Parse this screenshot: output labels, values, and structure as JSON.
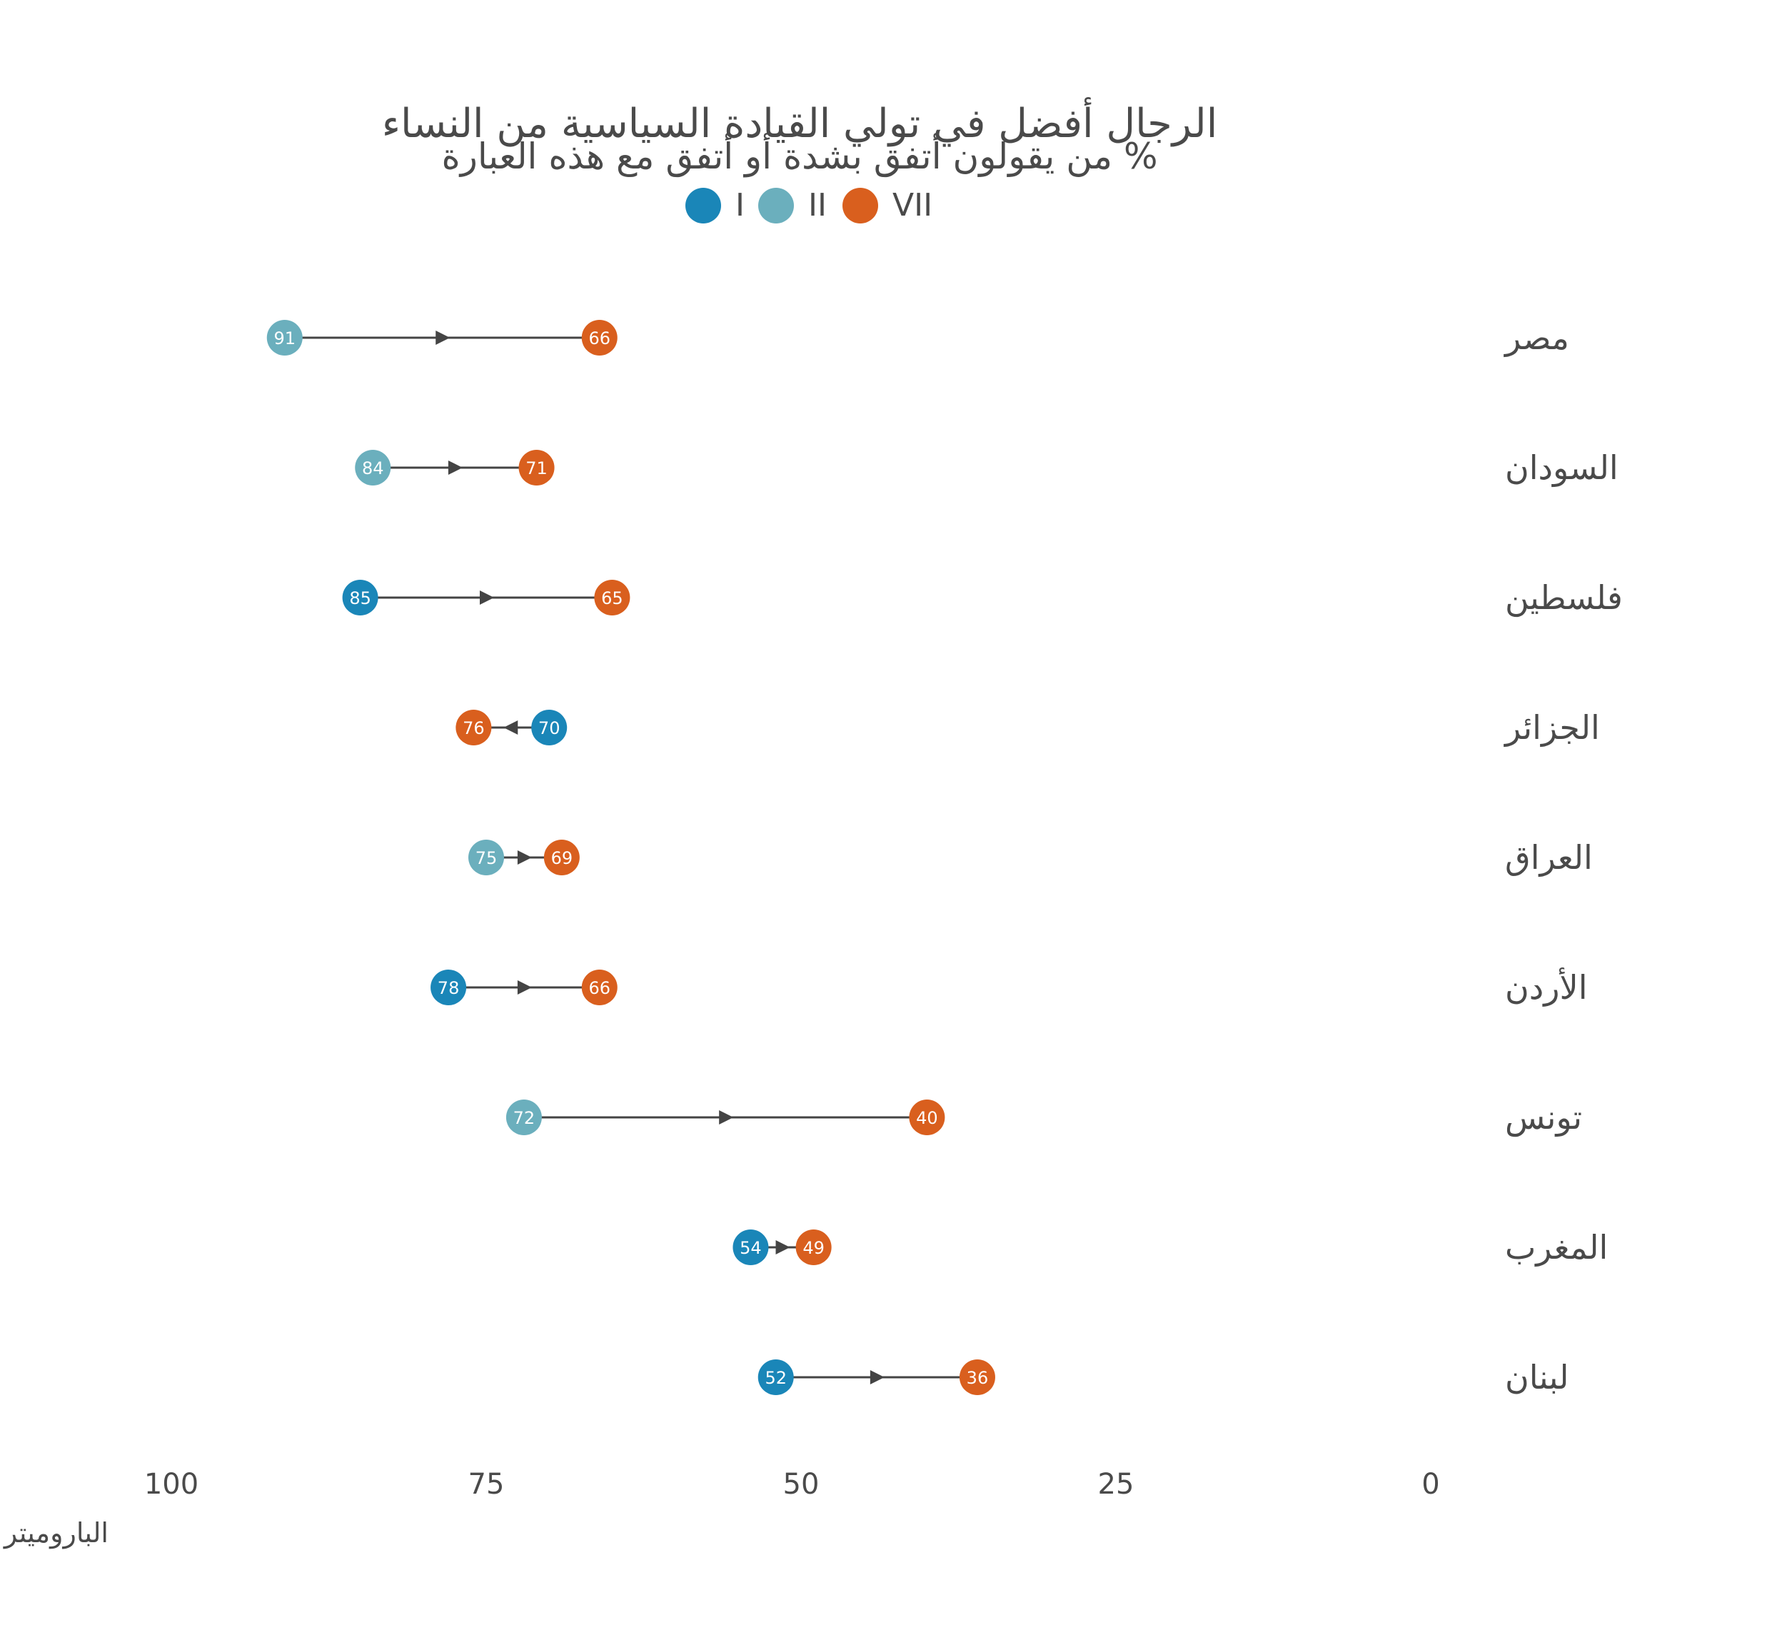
{
  "chart_data": {
    "type": "dumbbell",
    "title": "الرجال أفضل في تولي القيادة السياسية من النساء",
    "subtitle": "% من يقولون أتفق بشدة أو أتفق مع هذه العبارة",
    "source": "الباروميتر العربي",
    "xlim": [
      100,
      0
    ],
    "x_ticks": [
      100,
      75,
      50,
      25,
      0
    ],
    "legend": [
      {
        "name": "I",
        "color": "#1a86b8"
      },
      {
        "name": "II",
        "color": "#6bafbd"
      },
      {
        "name": "VII",
        "color": "#d95f1e"
      }
    ],
    "rows": [
      {
        "country": "مصر",
        "from": {
          "wave": "II",
          "value": 91
        },
        "to": {
          "wave": "VII",
          "value": 66
        }
      },
      {
        "country": "السودان",
        "from": {
          "wave": "II",
          "value": 84
        },
        "to": {
          "wave": "VII",
          "value": 71
        }
      },
      {
        "country": "فلسطين",
        "from": {
          "wave": "I",
          "value": 85
        },
        "to": {
          "wave": "VII",
          "value": 65
        }
      },
      {
        "country": "الجزائر",
        "from": {
          "wave": "I",
          "value": 70
        },
        "to": {
          "wave": "VII",
          "value": 76
        }
      },
      {
        "country": "العراق",
        "from": {
          "wave": "II",
          "value": 75
        },
        "to": {
          "wave": "VII",
          "value": 69
        }
      },
      {
        "country": "الأردن",
        "from": {
          "wave": "I",
          "value": 78
        },
        "to": {
          "wave": "VII",
          "value": 66
        }
      },
      {
        "country": "تونس",
        "from": {
          "wave": "II",
          "value": 72
        },
        "to": {
          "wave": "VII",
          "value": 40
        }
      },
      {
        "country": "المغرب",
        "from": {
          "wave": "I",
          "value": 54
        },
        "to": {
          "wave": "VII",
          "value": 49
        }
      },
      {
        "country": "لبنان",
        "from": {
          "wave": "I",
          "value": 52
        },
        "to": {
          "wave": "VII",
          "value": 36
        }
      }
    ]
  }
}
